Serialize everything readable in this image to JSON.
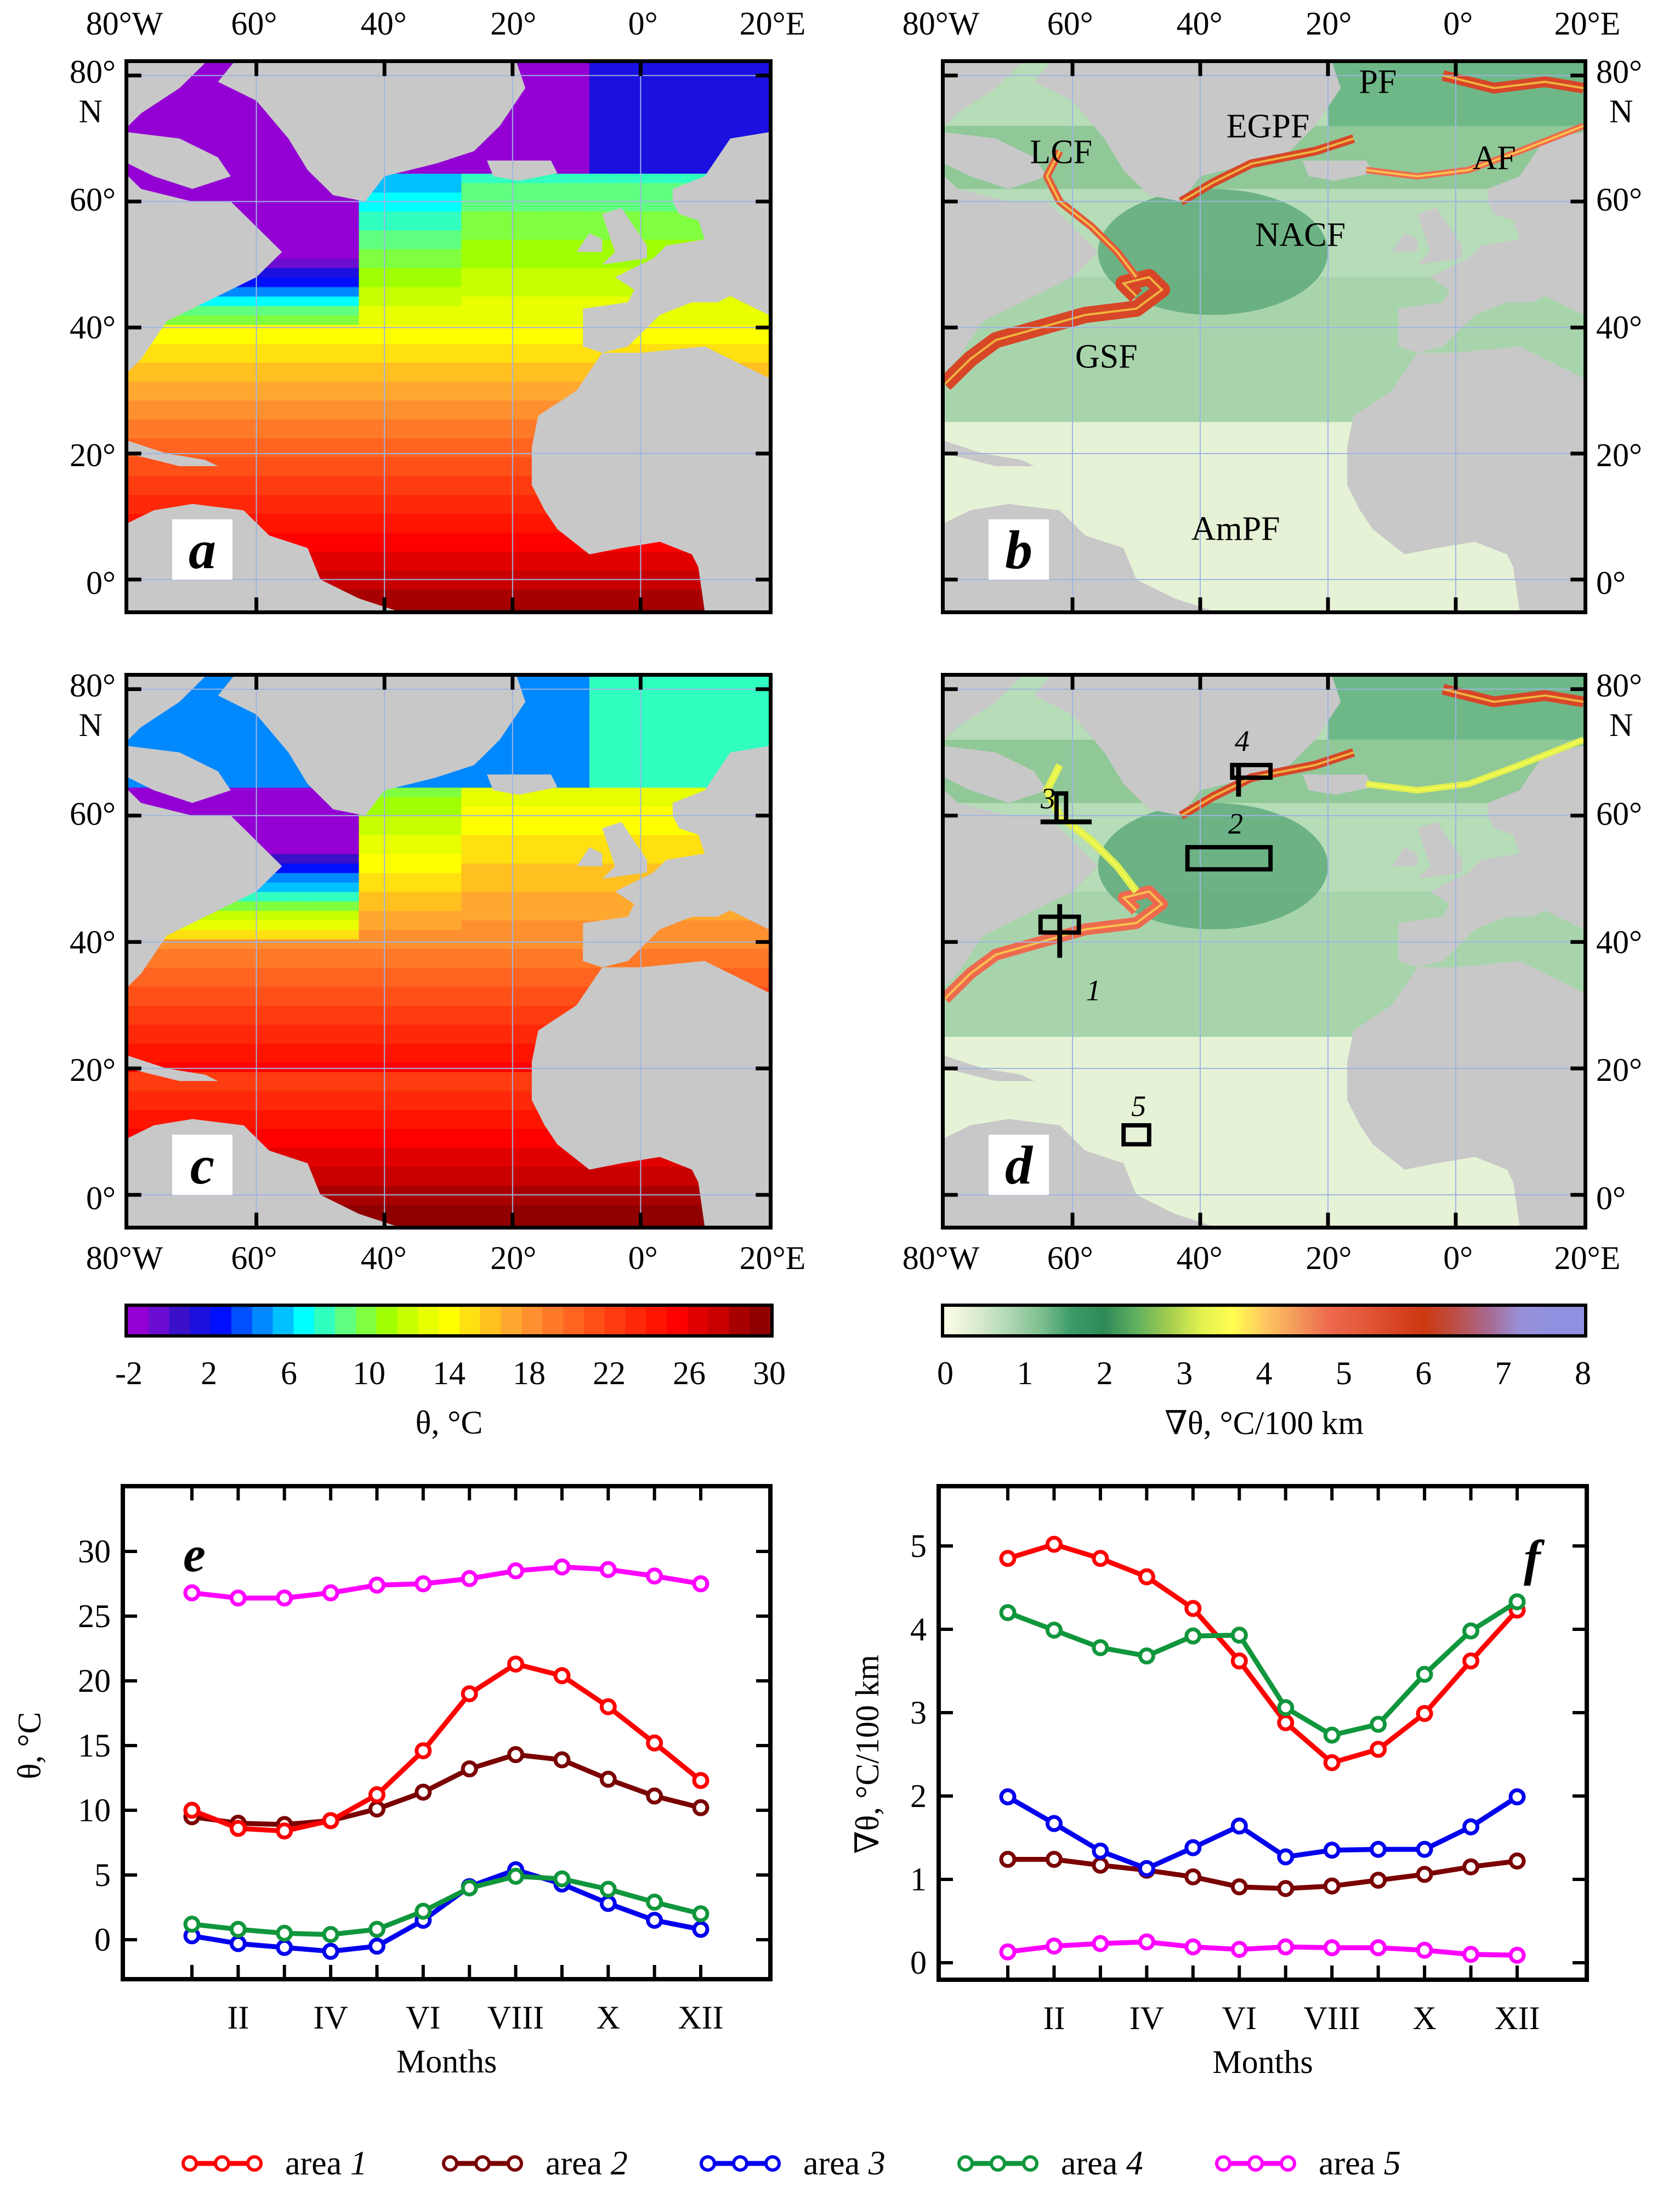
{
  "figure": {
    "maps": {
      "lon_labels": [
        "80°W",
        "60°",
        "40°",
        "20°",
        "0°",
        "20°E"
      ],
      "lat_labels": [
        "80°",
        "60°",
        "40°",
        "20°",
        "0°"
      ],
      "lat_unit": "N",
      "panels": [
        {
          "id": "a",
          "letter": "a",
          "variable": "theta",
          "season": "winter"
        },
        {
          "id": "b",
          "letter": "b",
          "variable": "gradient",
          "season": "winter",
          "front_labels": [
            "PF",
            "EGPF",
            "LCF",
            "AF",
            "NACF",
            "GSF",
            "AmPF"
          ]
        },
        {
          "id": "c",
          "letter": "c",
          "variable": "theta",
          "season": "summer"
        },
        {
          "id": "d",
          "letter": "d",
          "variable": "gradient",
          "season": "summer",
          "area_labels": [
            "1",
            "2",
            "3",
            "4",
            "5"
          ]
        }
      ]
    },
    "colorbars": [
      {
        "id": "theta",
        "title": "θ, °C",
        "ticks": [
          "-2",
          "2",
          "6",
          "10",
          "14",
          "18",
          "22",
          "26",
          "30"
        ],
        "range": [
          -2,
          30
        ],
        "colors": [
          "#9400d3",
          "#6a0dd0",
          "#3a10c8",
          "#1a10e0",
          "#0010ff",
          "#0050ff",
          "#0088ff",
          "#00c0ff",
          "#00ffff",
          "#30ffc0",
          "#60ff80",
          "#80ff40",
          "#a0ff00",
          "#c8ff00",
          "#e8ff00",
          "#ffff00",
          "#ffe010",
          "#ffc020",
          "#ffa830",
          "#ff9030",
          "#ff7a28",
          "#ff6420",
          "#ff5018",
          "#ff3c10",
          "#ff2808",
          "#ff1400",
          "#ff0000",
          "#e00000",
          "#c80000",
          "#a80000",
          "#900000"
        ]
      },
      {
        "id": "gradient",
        "title": "∇θ, °C/100 km",
        "ticks": [
          "0",
          "1",
          "2",
          "3",
          "4",
          "5",
          "6",
          "7",
          "8"
        ],
        "range": [
          0,
          8
        ],
        "colors": [
          "#fdfde8",
          "#dcecd0",
          "#b0d8b4",
          "#80c090",
          "#3a9a68",
          "#2e8b57",
          "#60b060",
          "#a0cc50",
          "#e0f050",
          "#ffff50",
          "#ffc860",
          "#f39a5a",
          "#ee6a4e",
          "#e45a3a",
          "#d84628",
          "#cc3810",
          "#bc5048",
          "#a86890",
          "#9890d8",
          "#9090e0"
        ]
      }
    ],
    "legend": [
      {
        "label": "area",
        "number": "1",
        "color": "#ff0000"
      },
      {
        "label": "area",
        "number": "2",
        "color": "#7a0000"
      },
      {
        "label": "area",
        "number": "3",
        "color": "#0000ee"
      },
      {
        "label": "area",
        "number": "4",
        "color": "#10963c"
      },
      {
        "label": "area",
        "number": "5",
        "color": "#ff00ff"
      }
    ]
  },
  "chart_data": [
    {
      "id": "e",
      "type": "line",
      "panel_letter": "e",
      "title": "",
      "xlabel": "Months",
      "ylabel": "θ, °C",
      "x": [
        1,
        2,
        3,
        4,
        5,
        6,
        7,
        8,
        9,
        10,
        11,
        12
      ],
      "xticks": [
        2,
        4,
        6,
        8,
        10,
        12
      ],
      "xtick_labels": [
        "II",
        "IV",
        "VI",
        "VIII",
        "X",
        "XII"
      ],
      "xlim": [
        -1,
        13.8
      ],
      "ylim": [
        -3,
        35
      ],
      "yticks": [
        0,
        5,
        10,
        15,
        20,
        25,
        30
      ],
      "ytick_labels": [
        "0",
        "5",
        "10",
        "15",
        "20",
        "25",
        "30"
      ],
      "grid": false,
      "series": [
        {
          "name": "area 1",
          "color": "#ff0000",
          "values": [
            10.0,
            8.6,
            8.4,
            9.2,
            11.2,
            14.6,
            19.0,
            21.3,
            20.4,
            18.0,
            15.2,
            12.3
          ]
        },
        {
          "name": "area 2",
          "color": "#7a0000",
          "values": [
            9.5,
            9.0,
            8.9,
            9.2,
            10.1,
            11.4,
            13.2,
            14.3,
            13.9,
            12.4,
            11.1,
            10.2
          ]
        },
        {
          "name": "area 3",
          "color": "#0000ee",
          "values": [
            0.3,
            -0.3,
            -0.6,
            -0.9,
            -0.5,
            1.5,
            4.1,
            5.4,
            4.3,
            2.8,
            1.5,
            0.8
          ]
        },
        {
          "name": "area 4",
          "color": "#10963c",
          "values": [
            1.2,
            0.8,
            0.5,
            0.4,
            0.8,
            2.2,
            4.0,
            4.9,
            4.7,
            3.9,
            2.9,
            2.0
          ]
        },
        {
          "name": "area 5",
          "color": "#ff00ff",
          "values": [
            26.8,
            26.4,
            26.4,
            26.8,
            27.4,
            27.5,
            27.9,
            28.5,
            28.8,
            28.6,
            28.1,
            27.5
          ]
        }
      ]
    },
    {
      "id": "f",
      "type": "line",
      "panel_letter": "f",
      "title": "",
      "xlabel": "Months",
      "ylabel": "∇θ, °C/100 km",
      "x": [
        1,
        2,
        3,
        4,
        5,
        6,
        7,
        8,
        9,
        10,
        11,
        12
      ],
      "xticks": [
        2,
        4,
        6,
        8,
        10,
        12
      ],
      "xtick_labels": [
        "II",
        "IV",
        "VI",
        "VIII",
        "X",
        "XII"
      ],
      "xlim": [
        -1,
        13.8
      ],
      "ylim": [
        -0.2,
        5.7
      ],
      "yticks": [
        0,
        1,
        2,
        3,
        4,
        5
      ],
      "ytick_labels": [
        "0",
        "1",
        "2",
        "3",
        "4",
        "5"
      ],
      "grid": false,
      "series": [
        {
          "name": "area 1",
          "color": "#ff0000",
          "values": [
            4.85,
            5.02,
            4.85,
            4.63,
            4.25,
            3.62,
            2.88,
            2.4,
            2.56,
            2.99,
            3.62,
            4.23
          ]
        },
        {
          "name": "area 2",
          "color": "#7a0000",
          "values": [
            1.24,
            1.24,
            1.17,
            1.11,
            1.03,
            0.91,
            0.89,
            0.92,
            0.99,
            1.06,
            1.15,
            1.22
          ]
        },
        {
          "name": "area 3",
          "color": "#0000ee",
          "values": [
            1.99,
            1.67,
            1.34,
            1.13,
            1.38,
            1.64,
            1.27,
            1.35,
            1.36,
            1.36,
            1.63,
            1.99
          ]
        },
        {
          "name": "area 4",
          "color": "#10963c",
          "values": [
            4.2,
            3.99,
            3.78,
            3.68,
            3.92,
            3.93,
            3.06,
            2.73,
            2.86,
            3.46,
            3.98,
            4.33
          ]
        },
        {
          "name": "area 5",
          "color": "#ff00ff",
          "values": [
            0.13,
            0.2,
            0.23,
            0.25,
            0.19,
            0.16,
            0.19,
            0.18,
            0.18,
            0.15,
            0.1,
            0.09
          ]
        }
      ]
    }
  ]
}
